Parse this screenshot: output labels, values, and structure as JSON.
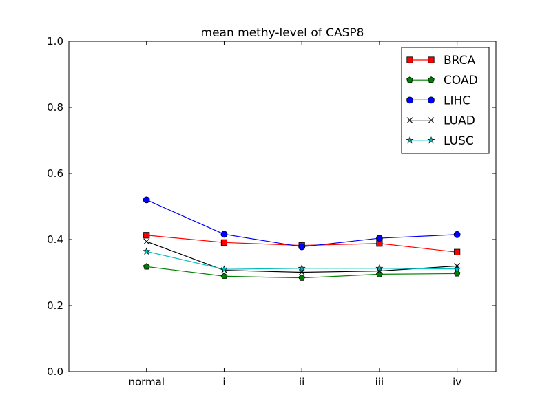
{
  "chart_data": {
    "type": "line",
    "title": "mean methy-level of CASP8",
    "xlabel": "",
    "ylabel": "",
    "categories": [
      "normal",
      "i",
      "ii",
      "iii",
      "iv"
    ],
    "x_range": [
      -1,
      4.5
    ],
    "ylim": [
      0.0,
      1.0
    ],
    "yticks": [
      "0.0",
      "0.2",
      "0.4",
      "0.6",
      "0.8",
      "1.0"
    ],
    "grid": false,
    "legend_position": "top-right",
    "series": [
      {
        "name": "BRCA",
        "color": "#ff0000",
        "marker": "square",
        "values": [
          0.413,
          0.391,
          0.382,
          0.388,
          0.362
        ]
      },
      {
        "name": "COAD",
        "color": "#008000",
        "marker": "pentagon",
        "values": [
          0.318,
          0.289,
          0.284,
          0.295,
          0.297
        ]
      },
      {
        "name": "LIHC",
        "color": "#0000ff",
        "marker": "circle",
        "values": [
          0.52,
          0.416,
          0.378,
          0.404,
          0.415
        ]
      },
      {
        "name": "LUAD",
        "color": "#000000",
        "marker": "x",
        "values": [
          0.394,
          0.307,
          0.301,
          0.305,
          0.32
        ]
      },
      {
        "name": "LUSC",
        "color": "#00bfbf",
        "marker": "star",
        "values": [
          0.364,
          0.31,
          0.313,
          0.313,
          0.311
        ]
      }
    ]
  }
}
